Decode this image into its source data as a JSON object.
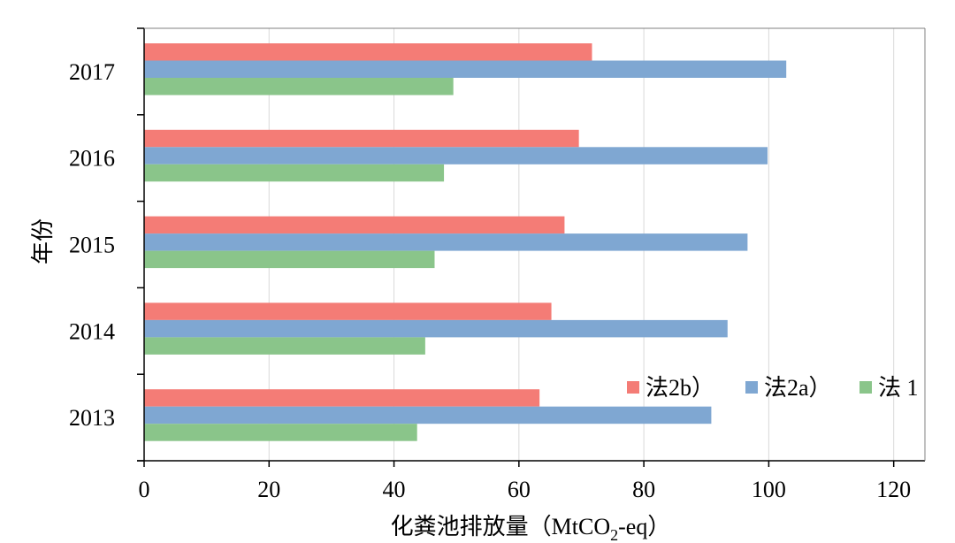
{
  "chart_data": {
    "type": "bar",
    "orientation": "horizontal",
    "categories": [
      "2013",
      "2014",
      "2015",
      "2016",
      "2017"
    ],
    "series": [
      {
        "name": "法2b）",
        "color": "#f47c76",
        "values": [
          63.3,
          65.2,
          67.3,
          69.6,
          71.7
        ]
      },
      {
        "name": "法2a）",
        "color": "#7fa7d2",
        "values": [
          90.8,
          93.4,
          96.6,
          99.8,
          102.8
        ]
      },
      {
        "name": "法 1",
        "color": "#8ac58a",
        "values": [
          43.7,
          45.0,
          46.5,
          48.0,
          49.5
        ]
      }
    ],
    "xlabel": "化粪池排放量（MtCO",
    "xlabel_sub": "2",
    "xlabel_tail": "-eq）",
    "ylabel": "年份",
    "xlim": [
      0,
      125
    ],
    "xticks": [
      0,
      20,
      40,
      60,
      80,
      100,
      120
    ],
    "grid": "vertical",
    "legend_position": "bottom-right"
  }
}
